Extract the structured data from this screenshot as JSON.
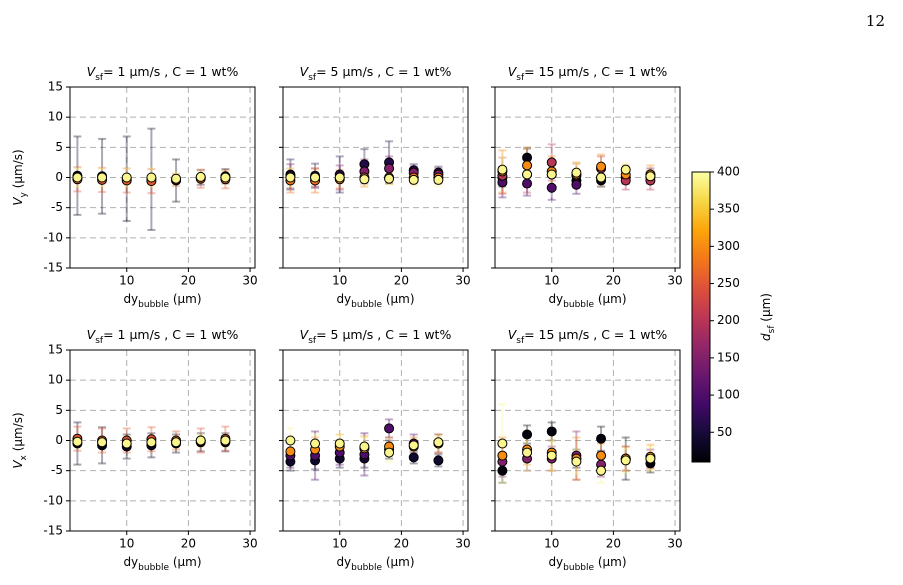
{
  "page_number": "12",
  "colorbar": {
    "label_var": "d",
    "label_sub": "sf",
    "label_unit": " (μm)",
    "colormap": "inferno",
    "clim": [
      10,
      400
    ],
    "ticks": [
      50,
      100,
      150,
      200,
      250,
      300,
      350,
      400
    ]
  },
  "chart_data": [
    {
      "type": "scatter",
      "title_var": "V",
      "title_sub": "sf",
      "title": "= 1 μm/s , C = 1 wt%",
      "x_label": "dy",
      "x_label_sub": "bubble",
      "x_label_unit": " (μm)",
      "y_label_var": "V",
      "y_label_sub": "y",
      "y_label_unit": " (μm/s)",
      "xlim": [
        0.8,
        30.8
      ],
      "xticks": [
        10,
        20,
        30
      ],
      "ylim": [
        -15,
        15
      ],
      "yticks": [
        -15,
        -10,
        -5,
        0,
        5,
        10,
        15
      ],
      "grid": true,
      "show_yticklabels": true,
      "series": [
        {
          "dsf": 30,
          "x": [
            2,
            6,
            10,
            14,
            18,
            22,
            26
          ],
          "values": [
            0.3,
            0.2,
            -0.2,
            -0.3,
            -0.5,
            0,
            0.2
          ],
          "errors": [
            6.5,
            6.2,
            7,
            8.4,
            3.5,
            1.2,
            1.2
          ]
        },
        {
          "dsf": 250,
          "x": [
            2,
            6,
            10,
            14,
            18,
            22,
            26
          ],
          "values": [
            -0.3,
            -0.4,
            -0.5,
            -0.6,
            -0.4,
            -0.2,
            -0.3
          ],
          "errors": [
            2,
            2,
            2,
            2,
            1,
            1.5,
            1.5
          ]
        },
        {
          "dsf": 390,
          "x": [
            2,
            6,
            10,
            14,
            18,
            22,
            26
          ],
          "values": [
            0,
            0,
            0,
            0,
            -0.2,
            0.1,
            0
          ],
          "errors": [
            1.5,
            1.5,
            1.5,
            1.5,
            1,
            1,
            1
          ]
        }
      ]
    },
    {
      "type": "scatter",
      "title_var": "V",
      "title_sub": "sf",
      "title": "= 5 μm/s , C = 1 wt%",
      "x_label": "dy",
      "x_label_sub": "bubble",
      "x_label_unit": " (μm)",
      "xlim": [
        0.8,
        30.8
      ],
      "xticks": [
        10,
        20,
        30
      ],
      "ylim": [
        -15,
        15
      ],
      "yticks": [
        -15,
        -10,
        -5,
        0,
        5,
        10,
        15
      ],
      "grid": true,
      "show_yticklabels": false,
      "series": [
        {
          "dsf": 60,
          "x": [
            2,
            6,
            10,
            14,
            18,
            22,
            26
          ],
          "values": [
            0.5,
            0.3,
            0.5,
            2.2,
            2.5,
            1.2,
            0.8
          ],
          "errors": [
            2.5,
            2,
            3,
            2.5,
            3.5,
            1,
            1
          ]
        },
        {
          "dsf": 150,
          "x": [
            2,
            6,
            10,
            14,
            18,
            22,
            26
          ],
          "values": [
            0.2,
            0,
            0,
            1,
            1.5,
            0.8,
            0.5
          ],
          "errors": [
            2,
            1.5,
            2,
            2,
            2,
            1,
            1
          ]
        },
        {
          "dsf": 280,
          "x": [
            2,
            6,
            10,
            14,
            18,
            22,
            26
          ],
          "values": [
            -0.5,
            -0.5,
            -0.3,
            0,
            0,
            0,
            0
          ],
          "errors": [
            2,
            2,
            1.5,
            1.5,
            1,
            1,
            1
          ]
        },
        {
          "dsf": 390,
          "x": [
            2,
            6,
            10,
            14,
            18,
            22,
            26
          ],
          "values": [
            0,
            0,
            0,
            -0.3,
            -0.2,
            -0.4,
            -0.4
          ],
          "errors": [
            1.5,
            1,
            1,
            1,
            1,
            1,
            1
          ]
        }
      ]
    },
    {
      "type": "scatter",
      "title_var": "V",
      "title_sub": "sf",
      "title": "= 15 μm/s , C = 1 wt%",
      "x_label": "dy",
      "x_label_sub": "bubble",
      "x_label_unit": " (μm)",
      "xlim": [
        0.8,
        30.8
      ],
      "xticks": [
        10,
        20,
        30
      ],
      "ylim": [
        -15,
        15
      ],
      "yticks": [
        -15,
        -10,
        -5,
        0,
        5,
        10,
        15
      ],
      "grid": true,
      "show_yticklabels": false,
      "series": [
        {
          "dsf": 20,
          "x": [
            2,
            6,
            10,
            14,
            18,
            22,
            26
          ],
          "values": [
            0,
            3.3,
            0.5,
            -0.5,
            -0.5,
            0,
            0
          ],
          "errors": [
            1.5,
            1.5,
            2,
            1,
            1,
            1,
            1
          ]
        },
        {
          "dsf": 100,
          "x": [
            2,
            6,
            10,
            14,
            18,
            22,
            26
          ],
          "values": [
            -0.8,
            -1,
            -1.7,
            -1.2,
            0,
            0,
            0.5
          ],
          "errors": [
            2.5,
            2,
            2,
            1.5,
            1.5,
            1,
            1
          ]
        },
        {
          "dsf": 200,
          "x": [
            2,
            6,
            10,
            14,
            18,
            22,
            26
          ],
          "values": [
            0.3,
            0.5,
            2.5,
            0.3,
            1.5,
            -0.5,
            -0.5
          ],
          "errors": [
            3,
            3,
            3,
            2,
            2,
            1.5,
            1.5
          ]
        },
        {
          "dsf": 300,
          "x": [
            2,
            6,
            10,
            14,
            18,
            22,
            26
          ],
          "values": [
            1,
            2,
            1,
            0.5,
            1.8,
            0.5,
            0.5
          ],
          "errors": [
            3.5,
            3,
            2.5,
            2,
            2,
            1.5,
            1.5
          ]
        },
        {
          "dsf": 390,
          "x": [
            2,
            6,
            10,
            14,
            18,
            22,
            26
          ],
          "values": [
            1.3,
            0.5,
            0.5,
            0.8,
            0,
            1.3,
            0.2
          ],
          "errors": [
            2,
            2,
            2,
            1.5,
            1.5,
            1,
            1
          ]
        }
      ]
    },
    {
      "type": "scatter",
      "title_var": "V",
      "title_sub": "sf",
      "title": "= 1 μm/s , C = 1 wt%",
      "x_label": "dy",
      "x_label_sub": "bubble",
      "x_label_unit": " (μm)",
      "y_label_var": "V",
      "y_label_sub": "x",
      "y_label_unit": " (μm/s)",
      "xlim": [
        0.8,
        30.8
      ],
      "xticks": [
        10,
        20,
        30
      ],
      "ylim": [
        -15,
        15
      ],
      "yticks": [
        -15,
        -10,
        -5,
        0,
        5,
        10,
        15
      ],
      "grid": true,
      "show_yticklabels": true,
      "series": [
        {
          "dsf": 30,
          "x": [
            2,
            6,
            10,
            14,
            18,
            22,
            26
          ],
          "values": [
            -0.5,
            -0.8,
            -1,
            -0.8,
            -0.5,
            -0.3,
            -0.3
          ],
          "errors": [
            3.5,
            3,
            2,
            2,
            1.5,
            1.5,
            1.5
          ]
        },
        {
          "dsf": 250,
          "x": [
            2,
            6,
            10,
            14,
            18,
            22,
            26
          ],
          "values": [
            0.3,
            0,
            0,
            0.2,
            0,
            0,
            0.3
          ],
          "errors": [
            2,
            2,
            2,
            2,
            1.5,
            2,
            2
          ]
        },
        {
          "dsf": 390,
          "x": [
            2,
            6,
            10,
            14,
            18,
            22,
            26
          ],
          "values": [
            -0.2,
            -0.3,
            -0.5,
            -0.3,
            -0.3,
            0,
            0
          ],
          "errors": [
            1,
            1,
            1,
            1,
            1,
            1,
            1
          ]
        }
      ]
    },
    {
      "type": "scatter",
      "title_var": "V",
      "title_sub": "sf",
      "title": "= 5 μm/s , C = 1 wt%",
      "x_label": "dy",
      "x_label_sub": "bubble",
      "x_label_unit": " (μm)",
      "xlim": [
        0.8,
        30.8
      ],
      "xticks": [
        10,
        20,
        30
      ],
      "ylim": [
        -15,
        15
      ],
      "yticks": [
        -15,
        -10,
        -5,
        0,
        5,
        10,
        15
      ],
      "grid": true,
      "show_yticklabels": false,
      "series": [
        {
          "dsf": 40,
          "x": [
            2,
            6,
            10,
            14,
            18,
            22,
            26
          ],
          "values": [
            -3.5,
            -3.3,
            -3,
            -3,
            -1.5,
            -2.8,
            -3.3
          ],
          "errors": [
            1.5,
            1.5,
            1.5,
            1.5,
            1.5,
            1,
            1
          ]
        },
        {
          "dsf": 100,
          "x": [
            2,
            6,
            10,
            14,
            18,
            22,
            26
          ],
          "values": [
            -2.5,
            -2.5,
            -2,
            -2.3,
            2,
            -0.5,
            -0.5
          ],
          "errors": [
            2,
            4,
            2,
            3.5,
            1.5,
            1.5,
            1.5
          ]
        },
        {
          "dsf": 300,
          "x": [
            2,
            6,
            10,
            14,
            18,
            22,
            26
          ],
          "values": [
            -1.8,
            -1.5,
            -1,
            -1.3,
            -1,
            -1,
            -0.5
          ],
          "errors": [
            2,
            2,
            2,
            2,
            1.5,
            1.5,
            1.5
          ]
        },
        {
          "dsf": 390,
          "x": [
            2,
            6,
            10,
            14,
            18,
            22,
            26
          ],
          "values": [
            0,
            -0.5,
            -0.5,
            -1,
            -2,
            -0.8,
            -0.3
          ],
          "errors": [
            2,
            1.5,
            1.5,
            1.5,
            1.5,
            1,
            1
          ]
        }
      ]
    },
    {
      "type": "scatter",
      "title_var": "V",
      "title_sub": "sf",
      "title": "= 15 μm/s , C = 1 wt%",
      "x_label": "dy",
      "x_label_sub": "bubble",
      "x_label_unit": " (μm)",
      "xlim": [
        0.8,
        30.8
      ],
      "xticks": [
        10,
        20,
        30
      ],
      "ylim": [
        -15,
        15
      ],
      "yticks": [
        -15,
        -10,
        -5,
        0,
        5,
        10,
        15
      ],
      "grid": true,
      "show_yticklabels": false,
      "series": [
        {
          "dsf": 15,
          "x": [
            2,
            6,
            10,
            14,
            18,
            22,
            26
          ],
          "values": [
            -5,
            1,
            1.5,
            -3,
            0.3,
            -3,
            -3.8
          ],
          "errors": [
            2,
            1.5,
            1.5,
            1.5,
            2,
            3.5,
            1.5
          ]
        },
        {
          "dsf": 150,
          "x": [
            2,
            6,
            10,
            14,
            18,
            22,
            26
          ],
          "values": [
            -3.5,
            -3,
            -3,
            -2.5,
            -4,
            -3,
            -3
          ],
          "errors": [
            2.5,
            2,
            2,
            4,
            2,
            2,
            1.5
          ]
        },
        {
          "dsf": 300,
          "x": [
            2,
            6,
            10,
            14,
            18,
            22,
            26
          ],
          "values": [
            -2.5,
            -1.5,
            -2,
            -3,
            -2.5,
            -3,
            -2.7
          ],
          "errors": [
            3,
            2.5,
            3,
            3.5,
            2,
            2,
            2
          ]
        },
        {
          "dsf": 390,
          "x": [
            2,
            6,
            10,
            14,
            18,
            22,
            26
          ],
          "values": [
            -0.5,
            -2,
            -2.5,
            -3.5,
            -5,
            -3.3,
            -3
          ],
          "errors": [
            6.5,
            3,
            2.5,
            2,
            2,
            2,
            2
          ]
        }
      ]
    }
  ]
}
